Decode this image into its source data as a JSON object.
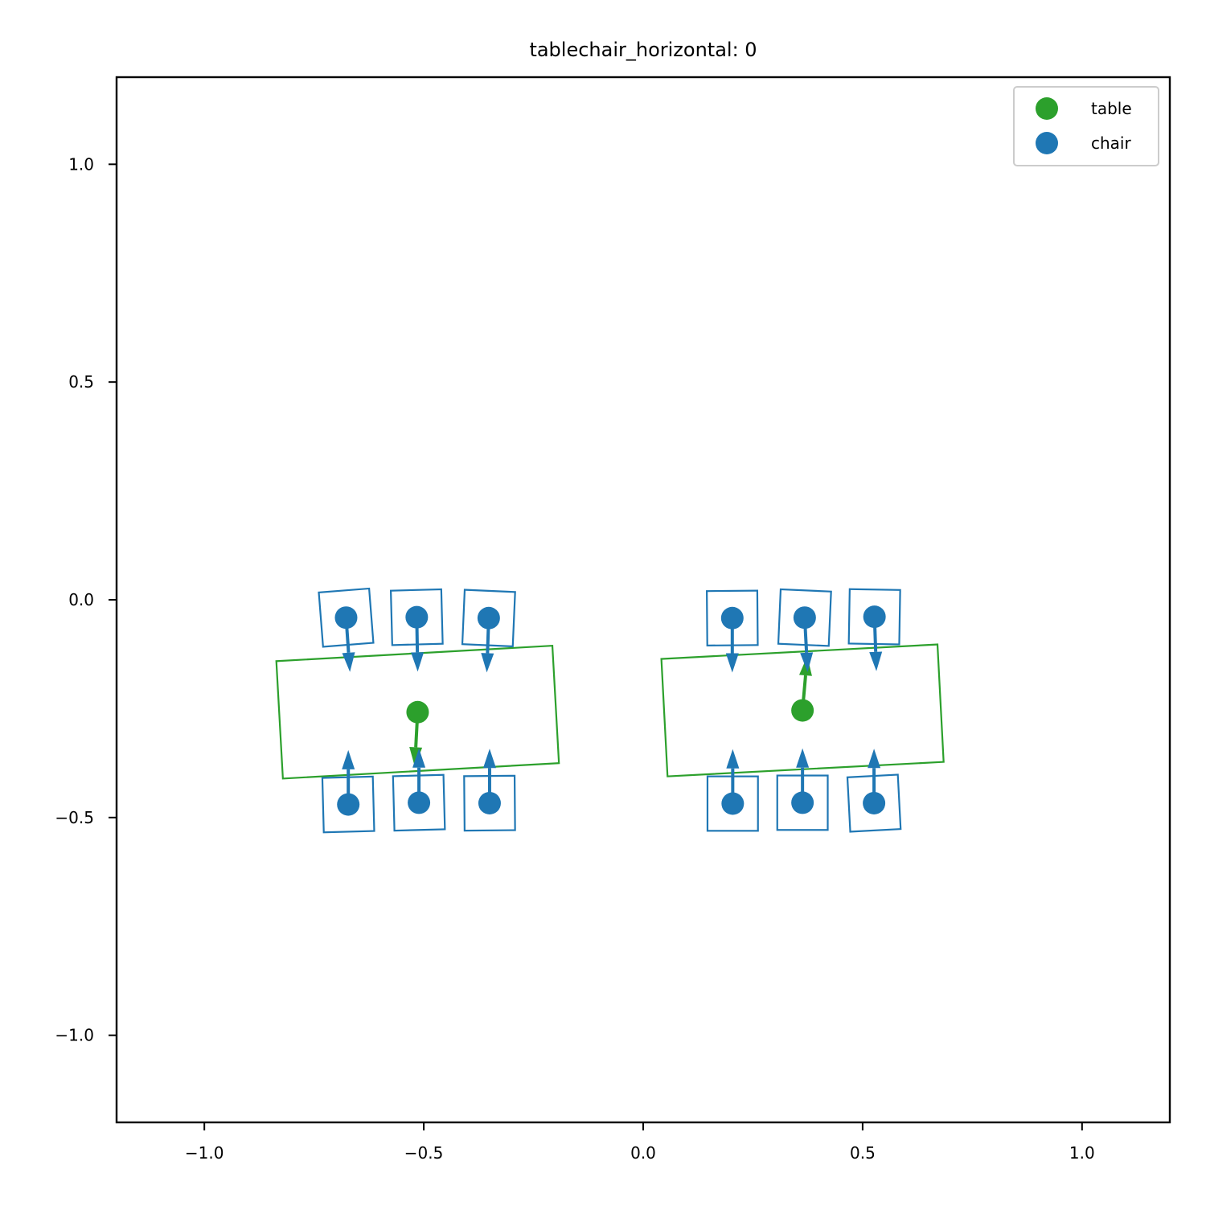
{
  "chart_data": {
    "type": "scatter",
    "title": "tablechair_horizontal: 0",
    "xlabel": "",
    "ylabel": "",
    "xlim": [
      -1.2,
      1.2
    ],
    "ylim": [
      -1.2,
      1.2
    ],
    "x_ticks": [
      -1.0,
      -0.5,
      0.0,
      0.5,
      1.0
    ],
    "y_ticks": [
      -1.0,
      -0.5,
      0.0,
      0.5,
      1.0
    ],
    "x_tick_labels": [
      "−1.0",
      "−0.5",
      "0.0",
      "0.5",
      "1.0"
    ],
    "y_tick_labels": [
      "−1.0",
      "−0.5",
      "0.0",
      "0.5",
      "1.0"
    ],
    "grid": false,
    "legend_position": "top-right",
    "series": [
      {
        "name": "table",
        "color": "#2ca02c",
        "objects": [
          {
            "x": -0.514,
            "y": -0.258,
            "w": 0.63,
            "h": 0.27,
            "angle_deg": 3.2,
            "heading_deg": -93
          },
          {
            "x": 0.363,
            "y": -0.254,
            "w": 0.63,
            "h": 0.27,
            "angle_deg": 3.0,
            "heading_deg": 85
          }
        ]
      },
      {
        "name": "chair",
        "color": "#1f77b4",
        "objects": [
          {
            "x": -0.677,
            "y": -0.041,
            "w": 0.115,
            "h": 0.125,
            "angle_deg": 4.5,
            "heading_deg": -86
          },
          {
            "x": -0.516,
            "y": -0.04,
            "w": 0.115,
            "h": 0.125,
            "angle_deg": 1.5,
            "heading_deg": -89
          },
          {
            "x": -0.352,
            "y": -0.042,
            "w": 0.115,
            "h": 0.125,
            "angle_deg": -2.5,
            "heading_deg": -92
          },
          {
            "x": -0.672,
            "y": -0.47,
            "w": 0.115,
            "h": 0.125,
            "angle_deg": 1.5,
            "heading_deg": 90
          },
          {
            "x": -0.511,
            "y": -0.466,
            "w": 0.115,
            "h": 0.125,
            "angle_deg": 1.5,
            "heading_deg": 90
          },
          {
            "x": -0.35,
            "y": -0.467,
            "w": 0.115,
            "h": 0.125,
            "angle_deg": 0.5,
            "heading_deg": 90
          },
          {
            "x": 0.203,
            "y": -0.042,
            "w": 0.115,
            "h": 0.125,
            "angle_deg": 0.5,
            "heading_deg": -90
          },
          {
            "x": 0.368,
            "y": -0.041,
            "w": 0.115,
            "h": 0.125,
            "angle_deg": -2.5,
            "heading_deg": -87
          },
          {
            "x": 0.527,
            "y": -0.039,
            "w": 0.115,
            "h": 0.125,
            "angle_deg": -1.0,
            "heading_deg": -88
          },
          {
            "x": 0.204,
            "y": -0.468,
            "w": 0.115,
            "h": 0.125,
            "angle_deg": 0.0,
            "heading_deg": 90
          },
          {
            "x": 0.363,
            "y": -0.466,
            "w": 0.115,
            "h": 0.125,
            "angle_deg": 0.0,
            "heading_deg": 90
          },
          {
            "x": 0.526,
            "y": -0.467,
            "w": 0.115,
            "h": 0.125,
            "angle_deg": 3.0,
            "heading_deg": 90
          }
        ]
      }
    ]
  }
}
